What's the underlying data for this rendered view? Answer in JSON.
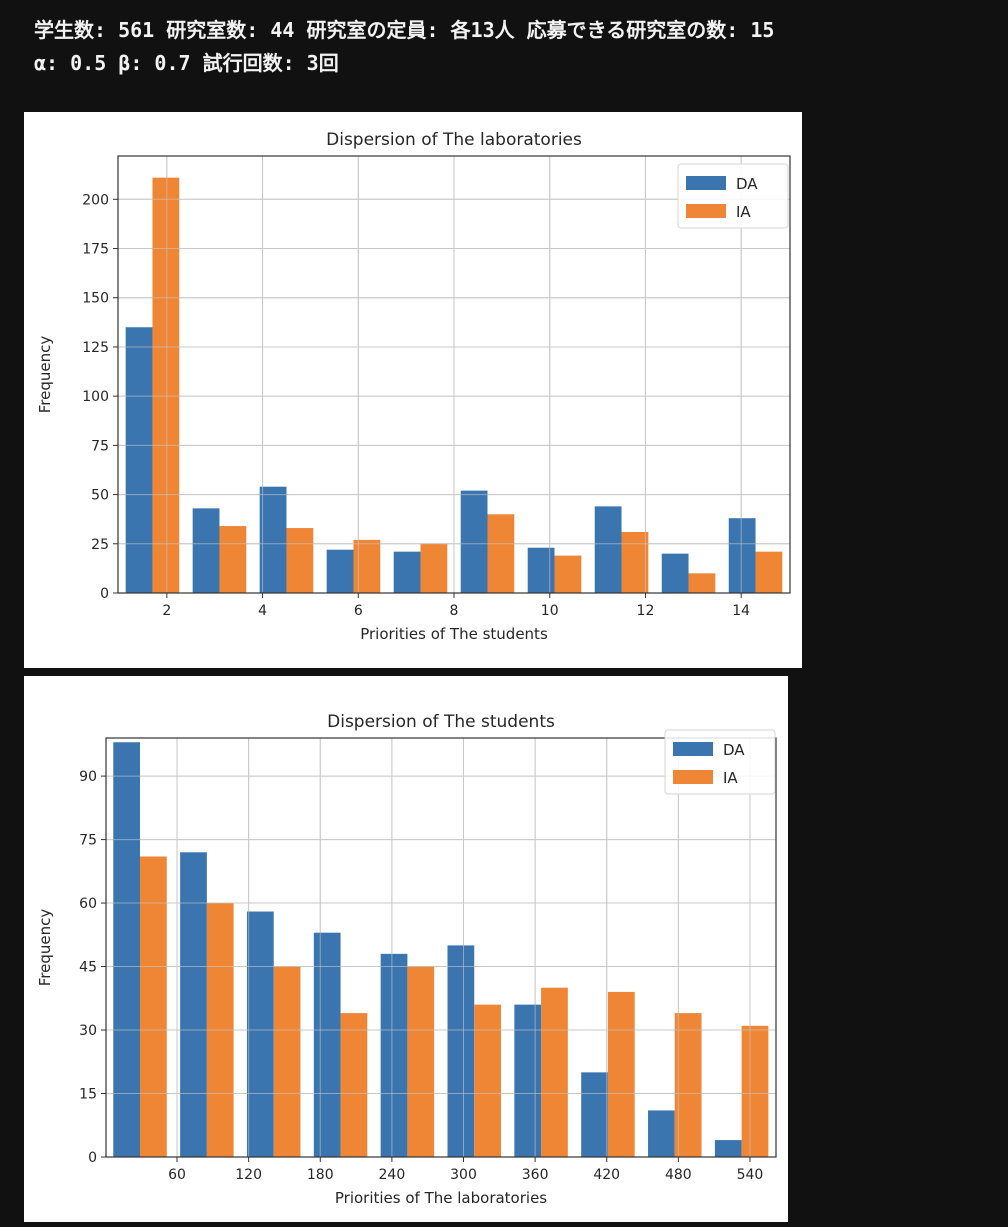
{
  "header": {
    "line1": "学生数: 561 研究室数: 44 研究室の定員: 各13人 応募できる研究室の数: 15",
    "line2": "α: 0.5 β: 0.7 試行回数: 3回"
  },
  "colors": {
    "DA": "#3a75b0",
    "IA": "#ef8636",
    "background": "#111111"
  },
  "chart_data": [
    {
      "type": "bar",
      "title": "Dispersion of The laboratories",
      "xlabel": "Priorities of The students",
      "ylabel": "Frequency",
      "bin_range": [
        1,
        15
      ],
      "bins": 10,
      "xlim": [
        0.98,
        15.02
      ],
      "ylim": [
        0,
        222
      ],
      "xticks": [
        2,
        4,
        6,
        8,
        10,
        12,
        14
      ],
      "yticks": [
        0,
        25,
        50,
        75,
        100,
        125,
        150,
        175,
        200
      ],
      "grid": true,
      "legend": "top-right",
      "series": [
        {
          "name": "DA",
          "values": [
            135,
            43,
            54,
            22,
            21,
            52,
            23,
            44,
            20,
            38
          ]
        },
        {
          "name": "IA",
          "values": [
            211,
            34,
            33,
            27,
            25,
            40,
            19,
            31,
            10,
            21
          ]
        }
      ]
    },
    {
      "type": "bar",
      "title": "Dispersion of The students",
      "xlabel": "Priorities of The laboratories",
      "ylabel": "Frequency",
      "bin_range": [
        1,
        561
      ],
      "bins": 10,
      "xlim": [
        0.5,
        561.8
      ],
      "ylim": [
        0,
        99
      ],
      "xticks": [
        60,
        120,
        180,
        240,
        300,
        360,
        420,
        480,
        540
      ],
      "yticks": [
        0,
        15,
        30,
        45,
        60,
        75,
        90
      ],
      "grid": true,
      "legend": "top-right",
      "series": [
        {
          "name": "DA",
          "values": [
            98,
            72,
            58,
            53,
            48,
            50,
            36,
            20,
            11,
            4
          ]
        },
        {
          "name": "IA",
          "values": [
            71,
            60,
            45,
            34,
            45,
            36,
            40,
            39,
            34,
            31
          ]
        }
      ]
    }
  ]
}
